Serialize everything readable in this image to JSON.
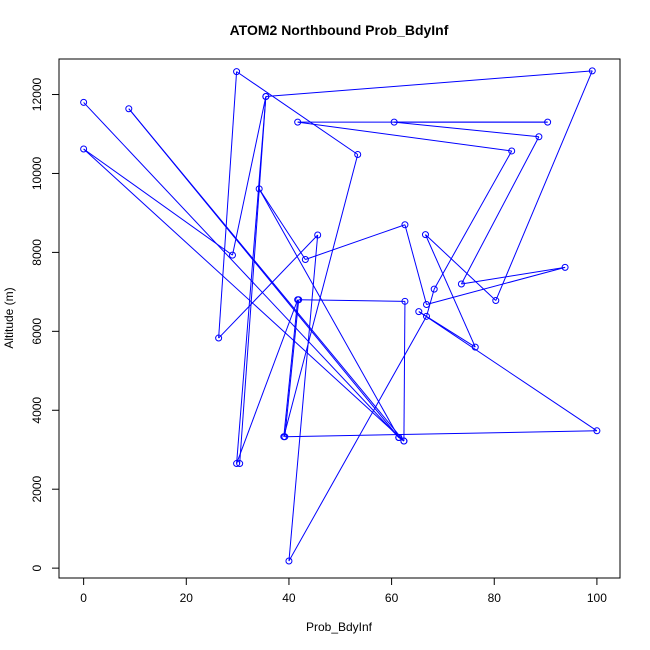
{
  "chart_data": {
    "type": "line",
    "title": "ATOM2 Northbound Prob_BdyInf",
    "xlabel": "Prob_BdyInf",
    "ylabel": "Altitude (m)",
    "xlim": [
      -4.8,
      104.5
    ],
    "ylim": [
      -250,
      12900
    ],
    "xticks": [
      0,
      20,
      40,
      60,
      80,
      100
    ],
    "xtick_labels": [
      "0",
      "20",
      "40",
      "60",
      "80",
      "100"
    ],
    "yticks": [
      0,
      2000,
      4000,
      6000,
      8000,
      10000,
      12000
    ],
    "ytick_labels": [
      "0",
      "2000",
      "4000",
      "6000",
      "8000",
      "10000",
      "12000"
    ],
    "grid": false,
    "line_color": "#0000ff",
    "marker": "open-circle",
    "series": [
      {
        "x": [
          0,
          61.4,
          8.8,
          62.4,
          0,
          29,
          35.5,
          29.8,
          41.7,
          39,
          53.4,
          29.8,
          26.3,
          45.6,
          40,
          66.8,
          68.3,
          83.4,
          41.7,
          90.4,
          60.5,
          88.7,
          73.6,
          93.8,
          66.8,
          62.6,
          43.2,
          34.2,
          61.4,
          62.4,
          62.6,
          41.9,
          39.2,
          100,
          65.3,
          76.3,
          66.6,
          80.3,
          99.1,
          35.5,
          30.4
        ],
        "y": [
          11800,
          3310,
          11640,
          3220,
          10620,
          7930,
          11950,
          2650,
          6800,
          3330,
          10480,
          12580,
          5830,
          8440,
          180,
          6380,
          7070,
          10570,
          11300,
          11300,
          11300,
          10930,
          7200,
          7620,
          6680,
          8700,
          7820,
          9610,
          3310,
          3220,
          6760,
          6800,
          3330,
          3480,
          6500,
          5600,
          8450,
          6780,
          12600,
          11950,
          2650
        ]
      }
    ]
  }
}
